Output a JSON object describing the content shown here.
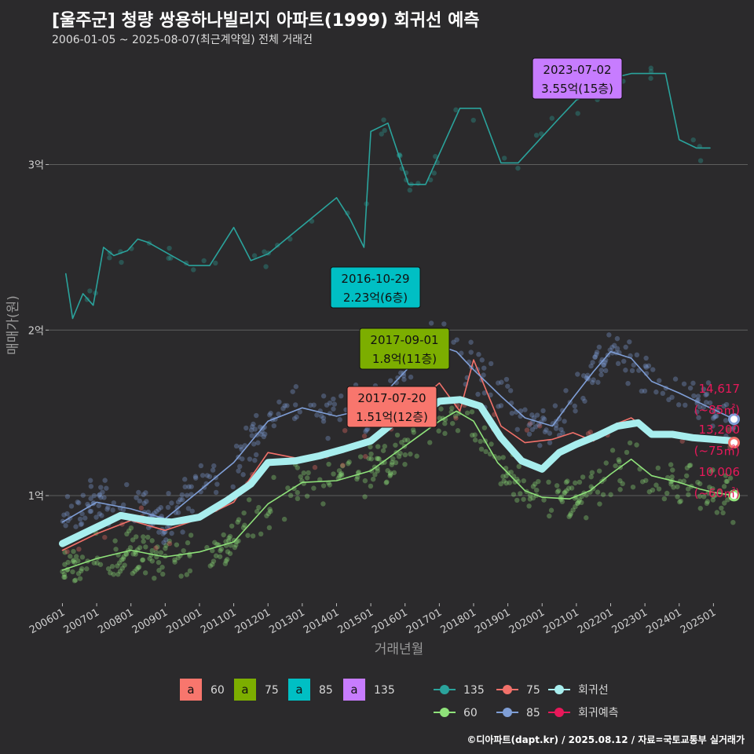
{
  "title": "[울주군] 청량 쌍용하나빌리지 아파트(1999) 회귀선 예측",
  "subtitle": "2006-01-05 ~ 2025-08-07(최근계약일) 전체 거래건",
  "credit": "©디아파트(dapt.kr) / 2025.08.12 / 자료=국토교통부 실거래가",
  "colors": {
    "s60": "#8fe27a",
    "s75": "#f2716a",
    "s85": "#7f9ed6",
    "s135": "#2aa39c",
    "reg": "#a8eeee",
    "pred": "#e8185a",
    "f60": "#f8766d",
    "f75": "#7cae00",
    "f85": "#00bfc4",
    "f135": "#c77cff"
  },
  "chart_data": {
    "type": "scatter",
    "title": "[울주군] 청량 쌍용하나빌리지 아파트(1999) 회귀선 예측",
    "xlabel": "거래년월",
    "ylabel": "매매가(원)",
    "x_range": [
      "2006-01",
      "2025-08"
    ],
    "ylim": [
      3500,
      37000
    ],
    "y_ticks": [
      {
        "value": 10000,
        "label": "1억"
      },
      {
        "value": 20000,
        "label": "2억"
      },
      {
        "value": 30000,
        "label": "3억"
      }
    ],
    "x_ticks": [
      "200601",
      "200701",
      "200801",
      "200901",
      "201001",
      "201101",
      "201201",
      "201301",
      "201401",
      "201501",
      "201601",
      "201701",
      "201801",
      "201901",
      "202001",
      "202101",
      "202201",
      "202301",
      "202401",
      "202501"
    ],
    "grid": true,
    "legend_position": "bottom",
    "legend_floors": [
      {
        "key": "a",
        "label": "60",
        "color": "f60"
      },
      {
        "key": "a",
        "label": "75",
        "color": "f75"
      },
      {
        "key": "a",
        "label": "85",
        "color": "f85"
      },
      {
        "key": "a",
        "label": "135",
        "color": "f135"
      }
    ],
    "legend_series": [
      {
        "label": "135",
        "color": "s135"
      },
      {
        "label": "75",
        "color": "s75"
      },
      {
        "label": "회귀선",
        "color": "reg"
      },
      {
        "label": "60",
        "color": "s60"
      },
      {
        "label": "85",
        "color": "s85"
      },
      {
        "label": "회귀예측",
        "color": "pred"
      }
    ],
    "series": [
      {
        "name": "60",
        "color": "s60",
        "points": [
          [
            2006.0,
            5500
          ],
          [
            2007.0,
            6200
          ],
          [
            2008.0,
            6700
          ],
          [
            2009.0,
            6300
          ],
          [
            2010.0,
            6600
          ],
          [
            2011.0,
            7200
          ],
          [
            2012.0,
            9500
          ],
          [
            2013.0,
            10800
          ],
          [
            2014.0,
            10900
          ],
          [
            2015.0,
            11500
          ],
          [
            2016.0,
            13000
          ],
          [
            2017.0,
            14500
          ],
          [
            2017.5,
            15100
          ],
          [
            2018.0,
            14500
          ],
          [
            2018.7,
            12000
          ],
          [
            2019.5,
            10300
          ],
          [
            2020.0,
            9900
          ],
          [
            2020.8,
            9800
          ],
          [
            2021.4,
            10300
          ],
          [
            2022.0,
            11300
          ],
          [
            2022.6,
            12200
          ],
          [
            2023.2,
            11200
          ],
          [
            2024.0,
            10800
          ],
          [
            2024.6,
            10400
          ],
          [
            2025.0,
            10200
          ],
          [
            2025.6,
            10006
          ]
        ]
      },
      {
        "name": "75",
        "color": "s75",
        "points": [
          [
            2006.0,
            6700
          ],
          [
            2007.0,
            7700
          ],
          [
            2008.0,
            8500
          ],
          [
            2009.0,
            7900
          ],
          [
            2010.0,
            8600
          ],
          [
            2011.0,
            9600
          ],
          [
            2012.0,
            12600
          ],
          [
            2013.0,
            12200
          ],
          [
            2014.0,
            12700
          ],
          [
            2015.0,
            13500
          ],
          [
            2016.0,
            15000
          ],
          [
            2017.0,
            16800
          ],
          [
            2017.6,
            15100
          ],
          [
            2018.0,
            18200
          ],
          [
            2018.8,
            14200
          ],
          [
            2019.5,
            13200
          ],
          [
            2020.3,
            13400
          ],
          [
            2020.9,
            13800
          ],
          [
            2021.5,
            13300
          ],
          [
            2022.0,
            14200
          ],
          [
            2022.6,
            14700
          ],
          [
            2023.3,
            13600
          ],
          [
            2024.0,
            13700
          ],
          [
            2024.8,
            13300
          ],
          [
            2025.6,
            13200
          ]
        ]
      },
      {
        "name": "85",
        "color": "s85",
        "points": [
          [
            2006.0,
            8400
          ],
          [
            2007.0,
            9600
          ],
          [
            2008.0,
            9200
          ],
          [
            2009.0,
            8600
          ],
          [
            2010.0,
            10300
          ],
          [
            2011.0,
            12000
          ],
          [
            2012.0,
            14500
          ],
          [
            2013.0,
            15300
          ],
          [
            2014.0,
            14800
          ],
          [
            2015.0,
            15300
          ],
          [
            2016.0,
            17500
          ],
          [
            2016.8,
            19200
          ],
          [
            2017.5,
            18700
          ],
          [
            2018.0,
            17600
          ],
          [
            2018.8,
            16000
          ],
          [
            2019.5,
            14700
          ],
          [
            2020.3,
            14200
          ],
          [
            2020.9,
            15900
          ],
          [
            2021.5,
            17500
          ],
          [
            2022.0,
            18700
          ],
          [
            2022.6,
            18300
          ],
          [
            2023.2,
            16900
          ],
          [
            2024.0,
            16200
          ],
          [
            2024.6,
            15600
          ],
          [
            2025.6,
            14617
          ]
        ]
      },
      {
        "name": "135",
        "color": "s135",
        "points": [
          [
            2006.1,
            23400
          ],
          [
            2006.3,
            20700
          ],
          [
            2006.6,
            22200
          ],
          [
            2006.9,
            21500
          ],
          [
            2007.2,
            25000
          ],
          [
            2007.5,
            24500
          ],
          [
            2007.9,
            24800
          ],
          [
            2008.2,
            25500
          ],
          [
            2008.5,
            25300
          ],
          [
            2009.7,
            23900
          ],
          [
            2010.3,
            23900
          ],
          [
            2011.0,
            26200
          ],
          [
            2011.5,
            24200
          ],
          [
            2012.0,
            24600
          ],
          [
            2014.0,
            28000
          ],
          [
            2014.4,
            26700
          ],
          [
            2014.8,
            25000
          ],
          [
            2015.0,
            32000
          ],
          [
            2015.5,
            32500
          ],
          [
            2016.1,
            28800
          ],
          [
            2016.6,
            28800
          ],
          [
            2017.6,
            33400
          ],
          [
            2018.2,
            33400
          ],
          [
            2018.8,
            30100
          ],
          [
            2019.3,
            30100
          ],
          [
            2020.5,
            32800
          ],
          [
            2021.0,
            33900
          ],
          [
            2021.5,
            34300
          ],
          [
            2022.0,
            35200
          ],
          [
            2022.6,
            35500
          ],
          [
            2023.6,
            35500
          ],
          [
            2024.0,
            31500
          ],
          [
            2024.5,
            31000
          ],
          [
            2024.9,
            31000
          ]
        ]
      },
      {
        "name": "회귀선",
        "color": "reg",
        "points": [
          [
            2006.0,
            7100
          ],
          [
            2007.0,
            8100
          ],
          [
            2007.7,
            8800
          ],
          [
            2008.5,
            8500
          ],
          [
            2009.2,
            8400
          ],
          [
            2010.0,
            8700
          ],
          [
            2010.8,
            9700
          ],
          [
            2011.5,
            10700
          ],
          [
            2012.0,
            12000
          ],
          [
            2012.8,
            12100
          ],
          [
            2013.5,
            12400
          ],
          [
            2014.2,
            12800
          ],
          [
            2015.0,
            13300
          ],
          [
            2015.6,
            14300
          ],
          [
            2016.4,
            14800
          ],
          [
            2017.0,
            15700
          ],
          [
            2017.6,
            15800
          ],
          [
            2018.2,
            15400
          ],
          [
            2018.8,
            13500
          ],
          [
            2019.4,
            12100
          ],
          [
            2020.0,
            11600
          ],
          [
            2020.5,
            12600
          ],
          [
            2021.0,
            13100
          ],
          [
            2021.6,
            13600
          ],
          [
            2022.2,
            14200
          ],
          [
            2022.8,
            14400
          ],
          [
            2023.2,
            13700
          ],
          [
            2023.8,
            13700
          ],
          [
            2024.4,
            13500
          ],
          [
            2025.0,
            13400
          ],
          [
            2025.6,
            13300
          ]
        ]
      }
    ],
    "predictions": [
      {
        "name": "85",
        "x": 2025.6,
        "y": 14617,
        "label_value": "14,617",
        "label_area": "(~85㎡)",
        "color": "s85"
      },
      {
        "name": "75",
        "x": 2025.6,
        "y": 13200,
        "label_value": "13,200",
        "label_area": "(~75㎡)",
        "color": "s75"
      },
      {
        "name": "60",
        "x": 2025.6,
        "y": 10006,
        "label_value": "10,006",
        "label_area": "(~60㎡)",
        "color": "s60"
      }
    ],
    "annotations": [
      {
        "date": "2023-07-02",
        "text": "3.55억(15층)",
        "x": 2023.5,
        "y": 35500,
        "color": "f135"
      },
      {
        "date": "2016-10-29",
        "text": "2.23억(6층)",
        "x": 2016.83,
        "y": 22300,
        "color": "f85"
      },
      {
        "date": "2017-09-01",
        "text": "1.8억(11층)",
        "x": 2017.67,
        "y": 18000,
        "color": "f75"
      },
      {
        "date": "2017-07-20",
        "text": "1.51억(12층)",
        "x": 2017.55,
        "y": 15100,
        "color": "f60"
      }
    ]
  }
}
